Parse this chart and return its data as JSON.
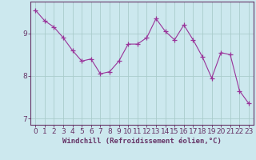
{
  "x": [
    0,
    1,
    2,
    3,
    4,
    5,
    6,
    7,
    8,
    9,
    10,
    11,
    12,
    13,
    14,
    15,
    16,
    17,
    18,
    19,
    20,
    21,
    22,
    23
  ],
  "y": [
    9.55,
    9.3,
    9.15,
    8.9,
    8.6,
    8.35,
    8.4,
    8.05,
    8.1,
    8.35,
    8.75,
    8.75,
    8.9,
    9.35,
    9.05,
    8.85,
    9.2,
    8.85,
    8.45,
    7.95,
    8.55,
    8.5,
    7.65,
    7.35
  ],
  "line_color": "#993399",
  "marker": "D",
  "marker_size": 2.2,
  "background_color": "#cce8ee",
  "grid_color": "#aacccc",
  "xlabel": "Windchill (Refroidissement éolien,°C)",
  "xlim": [
    -0.5,
    23.5
  ],
  "ylim": [
    6.85,
    9.75
  ],
  "yticks": [
    7,
    8,
    9
  ],
  "xtick_labels": [
    "0",
    "1",
    "2",
    "3",
    "4",
    "5",
    "6",
    "7",
    "8",
    "9",
    "10",
    "11",
    "12",
    "13",
    "14",
    "15",
    "16",
    "17",
    "18",
    "19",
    "20",
    "21",
    "22",
    "23"
  ],
  "xlabel_fontsize": 6.5,
  "tick_fontsize": 6.5,
  "axis_color": "#663366"
}
